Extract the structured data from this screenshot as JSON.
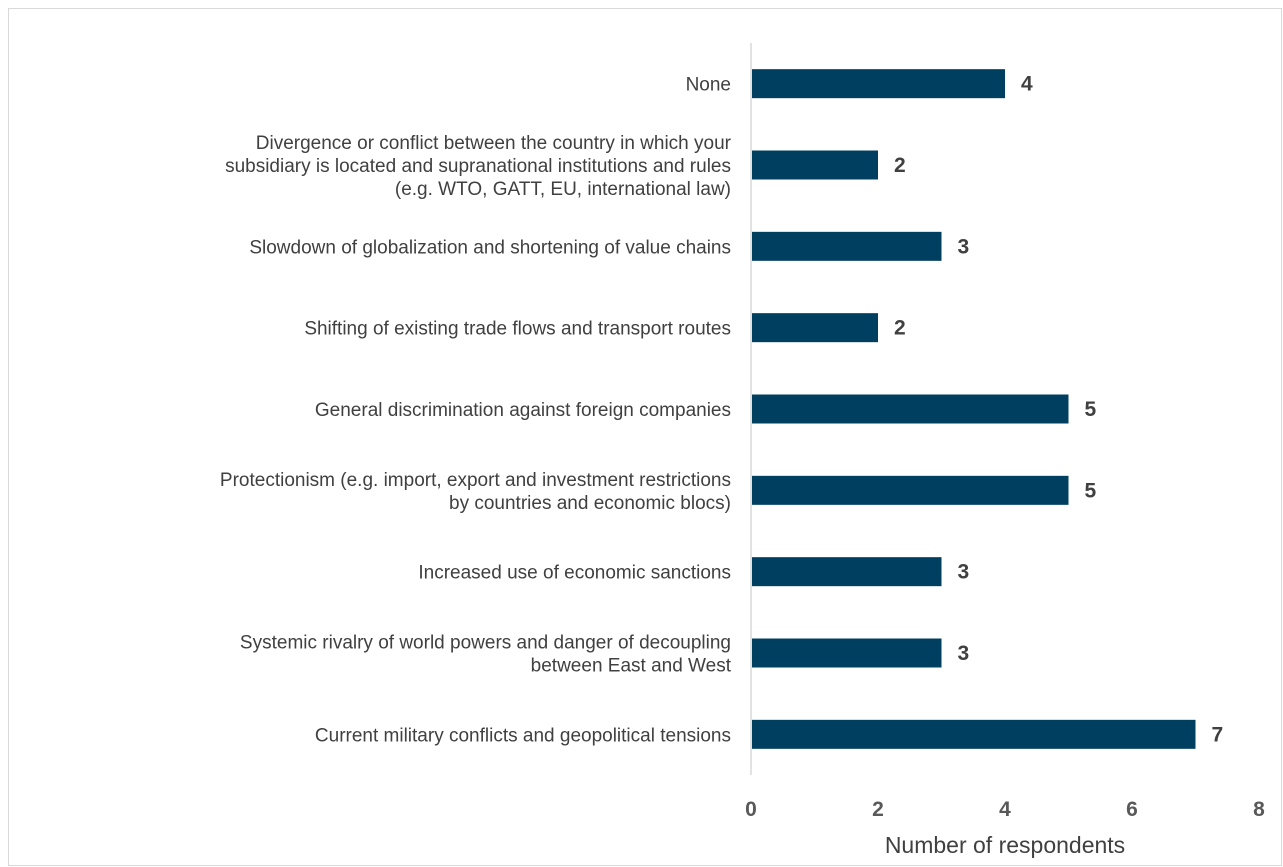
{
  "chart_data": {
    "type": "bar",
    "orientation": "horizontal",
    "categories": [
      [
        "None"
      ],
      [
        "Divergence or conflict between the country in which your",
        "subsidiary is located and supranational institutions and rules",
        "(e.g. WTO, GATT, EU, international law)"
      ],
      [
        "Slowdown of globalization and shortening of value chains"
      ],
      [
        "Shifting of existing trade flows and transport routes"
      ],
      [
        "General discrimination against foreign companies"
      ],
      [
        "Protectionism (e.g. import, export and investment restrictions",
        "by countries and economic blocs)"
      ],
      [
        "Increased use of economic sanctions"
      ],
      [
        "Systemic rivalry of world powers and danger of decoupling",
        "between East and West"
      ],
      [
        "Current military conflicts and geopolitical tensions"
      ]
    ],
    "values": [
      4,
      2,
      3,
      2,
      5,
      5,
      3,
      3,
      7
    ],
    "data_labels": [
      "4",
      "2",
      "3",
      "2",
      "5",
      "5",
      "3",
      "3",
      "7"
    ],
    "xlabel": "Number of respondents",
    "ylabel": "",
    "xlim": [
      0,
      8
    ],
    "xticks": [
      "0",
      "2",
      "4",
      "6",
      "8"
    ],
    "grid": false,
    "legend": "none",
    "colors": {
      "bar": "#003f5f",
      "axis": "#d9d9d9",
      "label": "#404040",
      "tick": "#595959"
    }
  }
}
